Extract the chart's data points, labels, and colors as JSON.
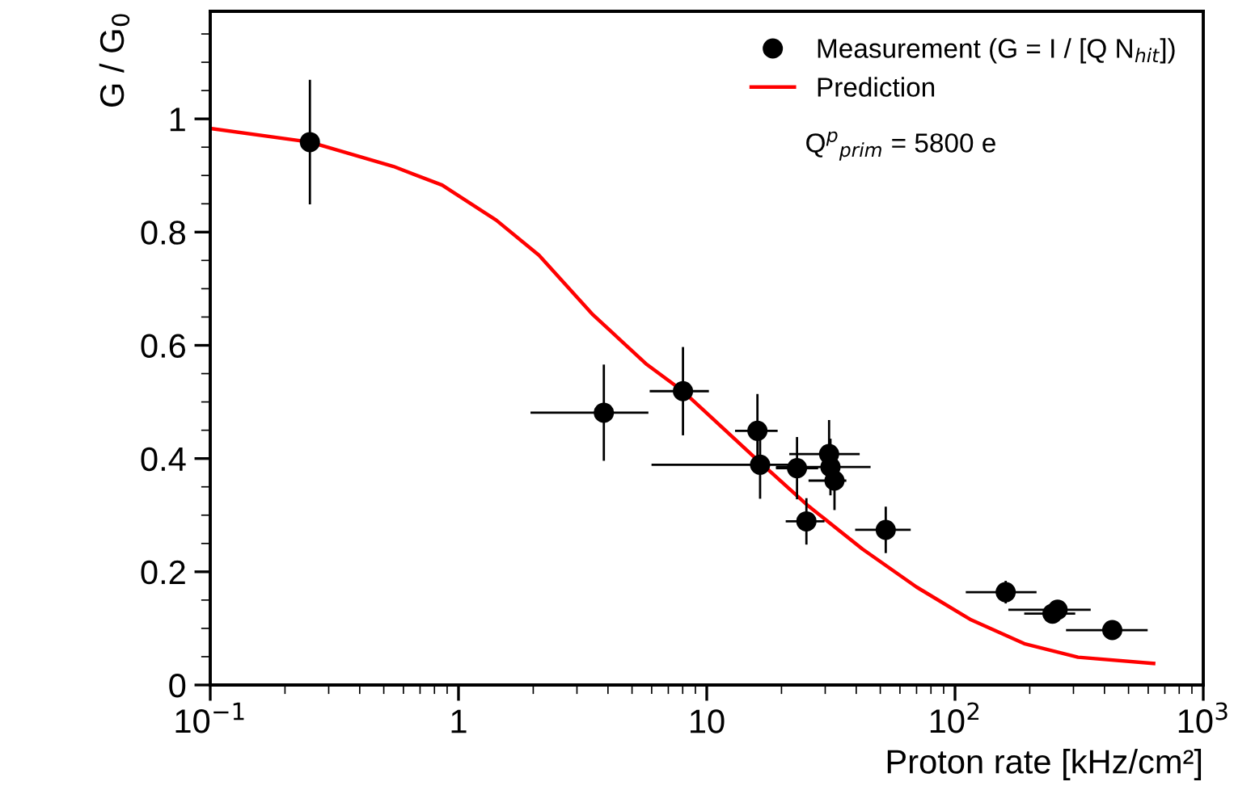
{
  "chart_data": {
    "type": "scatter",
    "xlabel": "Proton rate [kHz/cm²]",
    "ylabel": "G / G$_{0}$",
    "log": "x",
    "grid": false,
    "legend": "top right",
    "xlim": [
      0.1,
      1000
    ],
    "xticks": [
      {
        "value": 0.1,
        "label": "10$^{−1}$"
      },
      1,
      10,
      {
        "value": 100,
        "label": "10$^{2}$"
      },
      {
        "value": 1000,
        "label": "10$^{3}$"
      }
    ],
    "ylim": [
      0,
      1.19
    ],
    "yticks": [
      0,
      0.2,
      0.4,
      0.6,
      0.8,
      1
    ],
    "annotations": [
      "Q$^{p}$$_{prim}$ = 5800 e"
    ],
    "series": [
      {
        "name": "Measurement (G = I / [Q N$_{hit}$])",
        "color": "#000000",
        "marker": "circle",
        "x": [
          0.252,
          3.85,
          8.02,
          16.0,
          16.4,
          23.1,
          31.1,
          31.5,
          32.7,
          25.2,
          52.6,
          160,
          247,
          259,
          430
        ],
        "values": [
          0.959,
          0.481,
          0.519,
          0.449,
          0.389,
          0.383,
          0.408,
          0.385,
          0.361,
          0.289,
          0.274,
          0.164,
          0.126,
          0.133,
          0.097
        ],
        "errors": [
          0.11,
          0.085,
          0.078,
          0.065,
          0.06,
          0.055,
          0.06,
          0.05,
          0.052,
          0.041,
          0.041,
          0.02,
          0.015,
          0.015,
          0.01
        ],
        "xerrors": [
          null,
          [
            1.95,
            5.82
          ],
          [
            5.89,
            10.2
          ],
          [
            13.0,
            19.3
          ],
          [
            5.99,
            22.1
          ],
          [
            19.0,
            28.1
          ],
          [
            21.5,
            41.3
          ],
          [
            19.0,
            45.7
          ],
          [
            25.7,
            36.5
          ],
          [
            20.8,
            29.8
          ],
          [
            39.6,
            66.3
          ],
          [
            110.5,
            213
          ],
          [
            190,
            305
          ],
          [
            164,
            352
          ],
          [
            280,
            597
          ]
        ]
      },
      {
        "name": "Prediction",
        "type": "line",
        "color": "#ff0000",
        "marker": "none",
        "line_style": "solid",
        "x": [
          0.1,
          0.252,
          0.547,
          0.859,
          1.42,
          2.11,
          3.48,
          5.74,
          8.02,
          15.6,
          25.7,
          42.4,
          70,
          115,
          190,
          313,
          631
        ],
        "values": [
          0.983,
          0.959,
          0.916,
          0.883,
          0.821,
          0.759,
          0.654,
          0.566,
          0.519,
          0.402,
          0.316,
          0.24,
          0.173,
          0.116,
          0.073,
          0.049,
          0.038
        ]
      }
    ]
  }
}
